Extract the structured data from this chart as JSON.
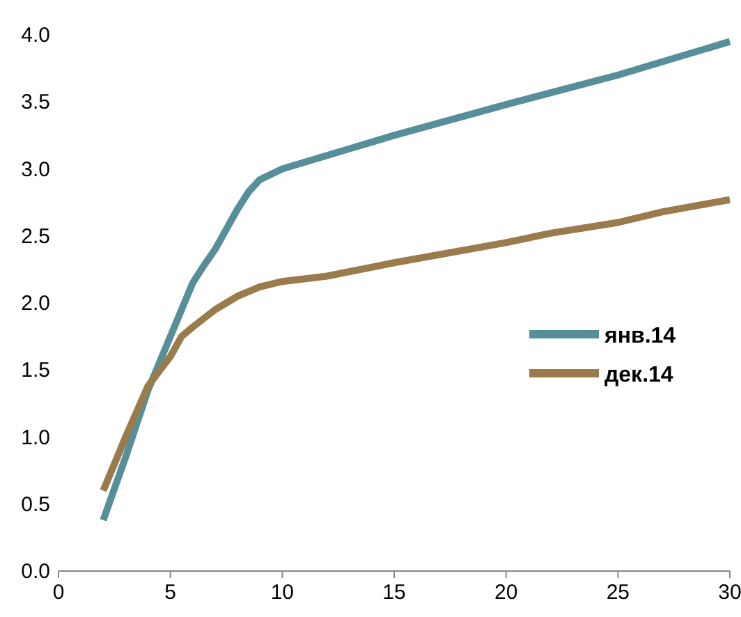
{
  "chart_data": {
    "type": "line",
    "xlim": [
      0,
      30
    ],
    "xticks": [
      0,
      5,
      10,
      15,
      20,
      25,
      30
    ],
    "ylim": [
      0,
      4
    ],
    "yticks": [
      {
        "value": 0,
        "label": "0.0"
      },
      {
        "value": 0.5,
        "label": "0.5"
      },
      {
        "value": 1,
        "label": "1.0"
      },
      {
        "value": 1.5,
        "label": "1.5"
      },
      {
        "value": 2,
        "label": "2.0"
      },
      {
        "value": 2.5,
        "label": "2.5"
      },
      {
        "value": 3,
        "label": "3.0"
      },
      {
        "value": 3.5,
        "label": "3.5"
      },
      {
        "value": 4,
        "label": "4.0"
      }
    ],
    "grid": false,
    "legend": "right",
    "marker": "none",
    "line_style": "solid",
    "series": [
      {
        "name": "янв.14",
        "color": "#568e9a",
        "x": [
          2,
          3,
          4,
          5,
          5.5,
          6,
          6.5,
          7,
          7.5,
          8,
          8.5,
          9,
          10,
          12,
          15,
          20,
          25,
          30
        ],
        "values": [
          0.38,
          0.85,
          1.35,
          1.75,
          1.95,
          2.15,
          2.28,
          2.4,
          2.55,
          2.7,
          2.83,
          2.92,
          3.0,
          3.1,
          3.25,
          3.48,
          3.7,
          3.95
        ]
      },
      {
        "name": "дек.14",
        "color": "#9a7b4c",
        "x": [
          2,
          3,
          4,
          5,
          5.5,
          6,
          7,
          8,
          9,
          10,
          12,
          15,
          20,
          22,
          25,
          27,
          30
        ],
        "values": [
          0.6,
          1.0,
          1.38,
          1.6,
          1.75,
          1.82,
          1.95,
          2.05,
          2.12,
          2.16,
          2.2,
          2.3,
          2.45,
          2.52,
          2.6,
          2.68,
          2.77
        ]
      }
    ]
  }
}
